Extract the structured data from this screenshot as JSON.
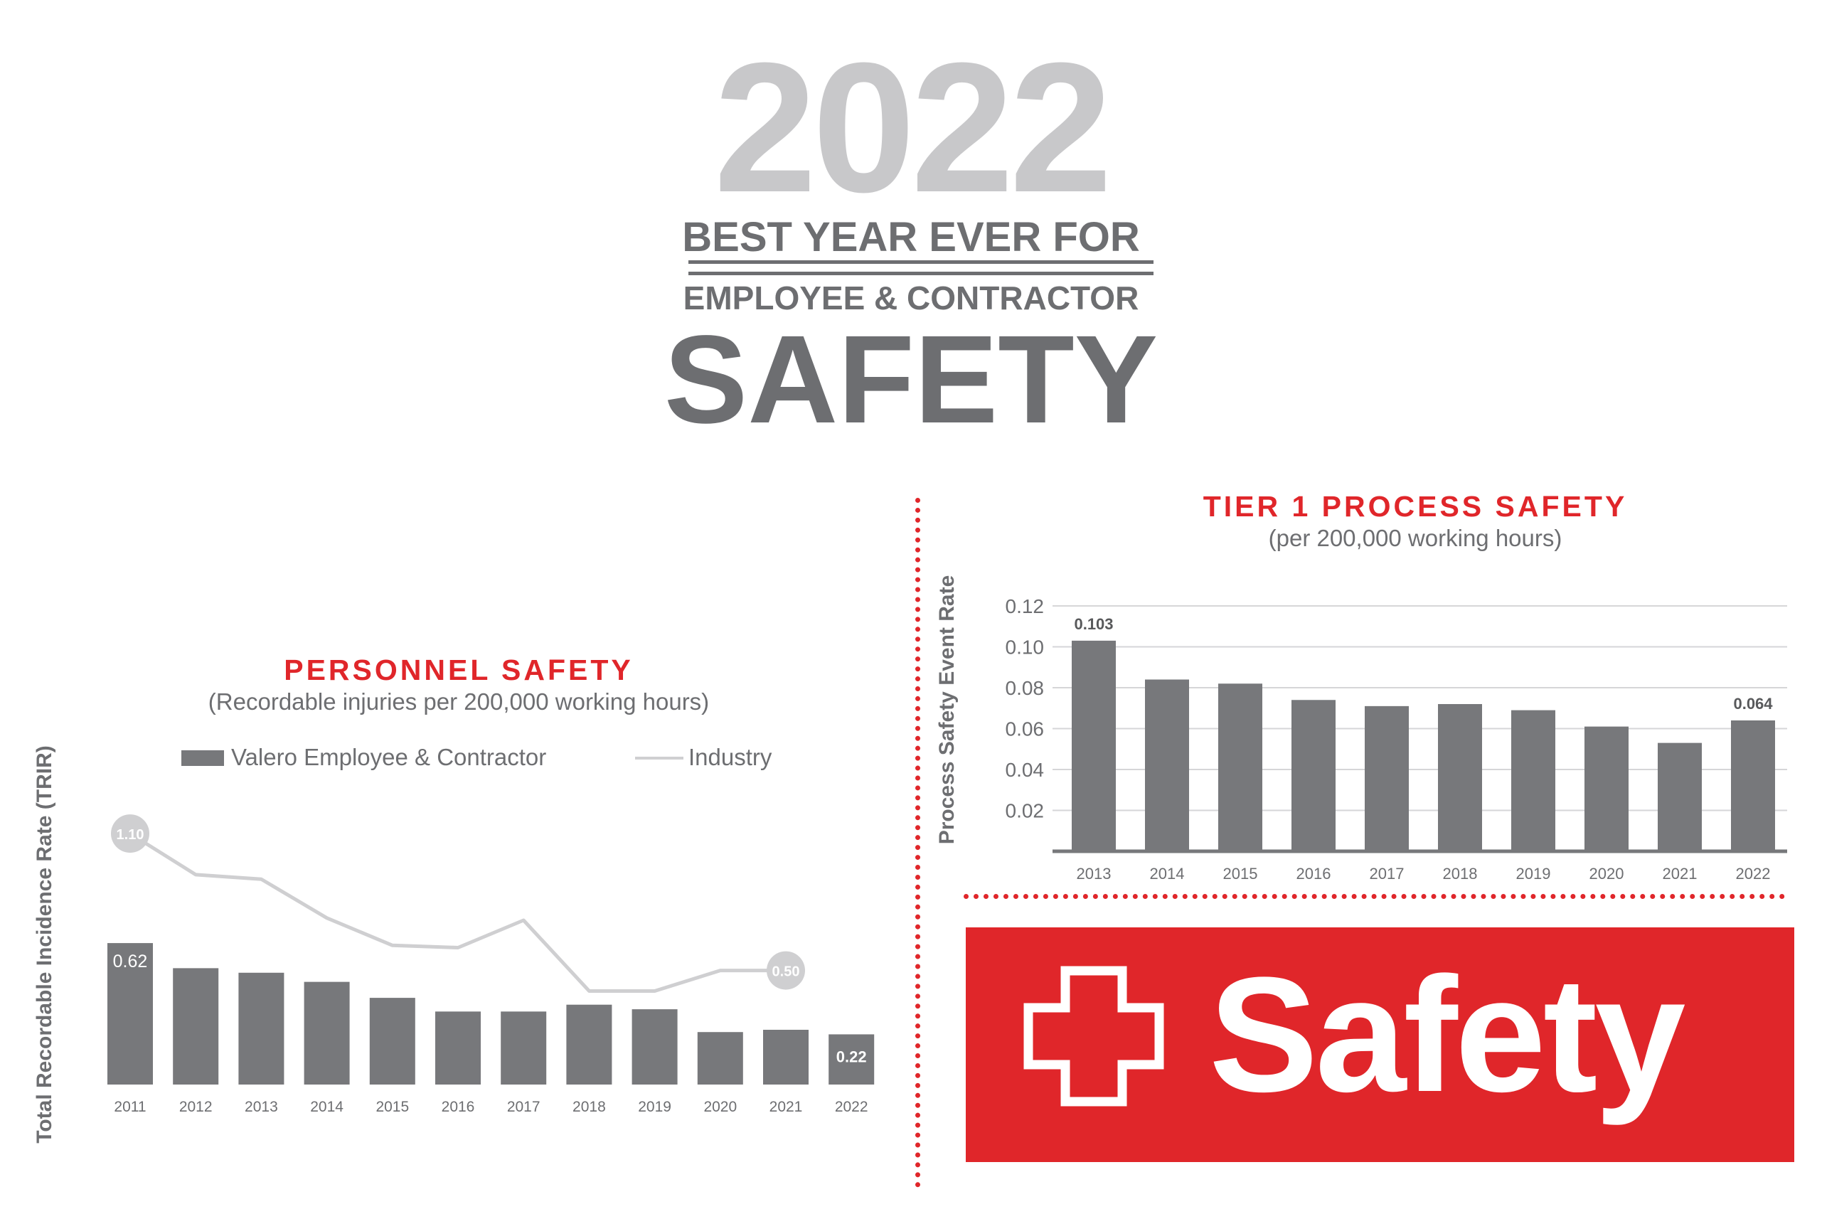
{
  "header": {
    "year": "2022",
    "line1": "BEST YEAR EVER FOR",
    "line2": "EMPLOYEE & CONTRACTOR",
    "big_word": "SAFETY"
  },
  "banner": {
    "word": "Safety",
    "icon": "medical-cross-icon"
  },
  "colors": {
    "brand_red": "#e0262a",
    "bar_gray": "#77787b",
    "industry_line": "#cfcfd1",
    "text_gray": "#6d6e71",
    "year_gray": "#c8c8ca"
  },
  "chart_data": [
    {
      "type": "bar",
      "title": "PERSONNEL SAFETY",
      "subtitle": "(Recordable injuries per 200,000 working hours)",
      "ylabel": "Total Recordable Incidence Rate (TRIR)",
      "xlabel": "",
      "legend_placement": "top",
      "categories": [
        "2011",
        "2012",
        "2013",
        "2014",
        "2015",
        "2016",
        "2017",
        "2018",
        "2019",
        "2020",
        "2021",
        "2022"
      ],
      "series": [
        {
          "name": "Valero Employee & Contractor",
          "kind": "bar",
          "values": [
            0.62,
            0.51,
            0.49,
            0.45,
            0.38,
            0.32,
            0.32,
            0.35,
            0.33,
            0.23,
            0.24,
            0.22
          ]
        },
        {
          "name": "Industry",
          "kind": "line",
          "values": [
            1.1,
            0.92,
            0.9,
            0.73,
            0.61,
            0.6,
            0.72,
            0.41,
            0.41,
            0.5,
            0.5,
            null
          ]
        }
      ],
      "data_labels": [
        {
          "series": "Valero Employee & Contractor",
          "category": "2011",
          "text": "0.62"
        },
        {
          "series": "Valero Employee & Contractor",
          "category": "2022",
          "text": "0.22"
        },
        {
          "series": "Industry",
          "category": "2011",
          "text": "1.10"
        },
        {
          "series": "Industry",
          "category": "2021",
          "text": "0.50"
        }
      ],
      "ylim": [
        0,
        1.2
      ],
      "grid": false
    },
    {
      "type": "bar",
      "title": "TIER 1 PROCESS SAFETY",
      "subtitle": "(per 200,000 working hours)",
      "ylabel": "Process Safety Event Rate",
      "xlabel": "",
      "categories": [
        "2013",
        "2014",
        "2015",
        "2016",
        "2017",
        "2018",
        "2019",
        "2020",
        "2021",
        "2022"
      ],
      "series": [
        {
          "values": [
            0.103,
            0.084,
            0.082,
            0.074,
            0.071,
            0.072,
            0.069,
            0.061,
            0.053,
            0.064
          ]
        }
      ],
      "yticks": [
        "0.02",
        "0.04",
        "0.06",
        "0.08",
        "0.10",
        "0.12"
      ],
      "data_labels": [
        {
          "category": "2013",
          "text": "0.103"
        },
        {
          "category": "2022",
          "text": "0.064"
        }
      ],
      "ylim": [
        0,
        0.12
      ],
      "grid": true
    }
  ]
}
